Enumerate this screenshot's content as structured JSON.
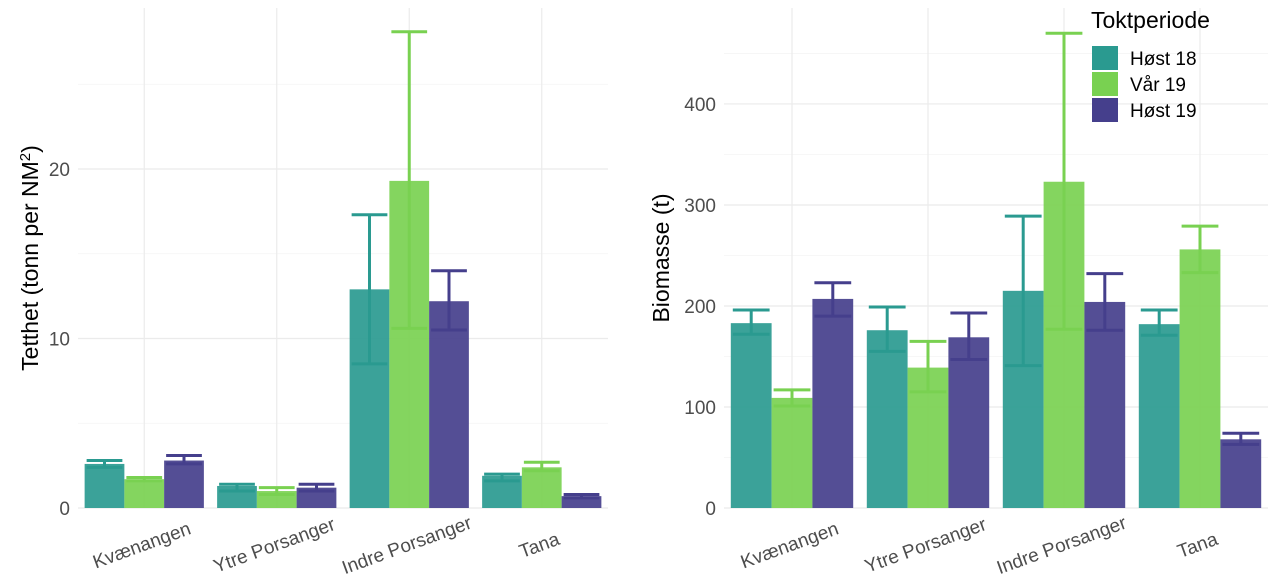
{
  "colors": {
    "Høst 18": "#2a9a90",
    "Vår 19": "#79d151",
    "Høst 19": "#453f8c"
  },
  "legend": {
    "title": "Toktperiode",
    "position": "top-right",
    "items": [
      "Høst 18",
      "Vår 19",
      "Høst 19"
    ]
  },
  "chart_data": [
    {
      "type": "bar",
      "ylabel_main": "Tetthet (tonn per NM",
      "ylabel_sup": "2",
      "ylabel_close": ")",
      "xlabel": "",
      "categories": [
        "Kvænangen",
        "Ytre Porsanger",
        "Indre Porsanger",
        "Tana"
      ],
      "ylim": [
        0,
        29.5
      ],
      "yticks": [
        0,
        10,
        20
      ],
      "ytick_labels": [
        "0",
        "10",
        "20"
      ],
      "grid": true,
      "series": [
        {
          "name": "Høst 18",
          "values": [
            2.6,
            1.3,
            12.9,
            1.9
          ],
          "err_low": [
            2.4,
            1.0,
            8.5,
            1.6
          ],
          "err_high": [
            2.8,
            1.4,
            17.3,
            2.0
          ]
        },
        {
          "name": "Vår 19",
          "values": [
            1.7,
            1.0,
            19.3,
            2.4
          ],
          "err_low": [
            1.6,
            0.8,
            10.6,
            2.2
          ],
          "err_high": [
            1.8,
            1.2,
            28.1,
            2.7
          ]
        },
        {
          "name": "Høst 19",
          "values": [
            2.8,
            1.2,
            12.2,
            0.7
          ],
          "err_low": [
            2.6,
            1.0,
            10.5,
            0.6
          ],
          "err_high": [
            3.1,
            1.4,
            14.0,
            0.8
          ]
        }
      ]
    },
    {
      "type": "bar",
      "ylabel_main": "Biomasse (t)",
      "ylabel_sup": "",
      "ylabel_close": "",
      "xlabel": "",
      "categories": [
        "Kvænangen",
        "Ytre Porsanger",
        "Indre Porsanger",
        "Tana"
      ],
      "ylim": [
        0,
        495
      ],
      "yticks": [
        0,
        100,
        200,
        300,
        400
      ],
      "ytick_labels": [
        "0",
        "100",
        "200",
        "300",
        "400"
      ],
      "grid": true,
      "series": [
        {
          "name": "Høst 18",
          "values": [
            183,
            176,
            215,
            182
          ],
          "err_low": [
            172,
            155,
            141,
            171
          ],
          "err_high": [
            196,
            199,
            289,
            196
          ]
        },
        {
          "name": "Vår 19",
          "values": [
            109,
            139,
            323,
            256
          ],
          "err_low": [
            101,
            115,
            177,
            233
          ],
          "err_high": [
            117,
            165,
            470,
            279
          ]
        },
        {
          "name": "Høst 19",
          "values": [
            207,
            169,
            204,
            68
          ],
          "err_low": [
            190,
            147,
            176,
            63
          ],
          "err_high": [
            223,
            193,
            232,
            74
          ]
        }
      ]
    }
  ]
}
